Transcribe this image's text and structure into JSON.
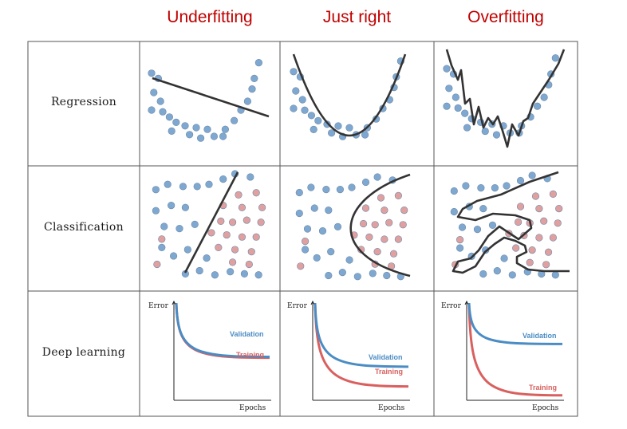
{
  "columns": [
    "Underfitting",
    "Just right",
    "Overfitting"
  ],
  "rows": [
    "Regression",
    "Classification",
    "Deep learning"
  ],
  "curves": {
    "axis_y": "Error",
    "axis_x": "Epochs",
    "validation": "Validation",
    "training": "Training"
  },
  "colors": {
    "title": "#c00000",
    "blue_point": "#7fa8d1",
    "red_point": "#e0a0a0",
    "model_line": "#333333",
    "validation_curve": "#4a8cc4",
    "training_curve": "#d9605f"
  }
}
